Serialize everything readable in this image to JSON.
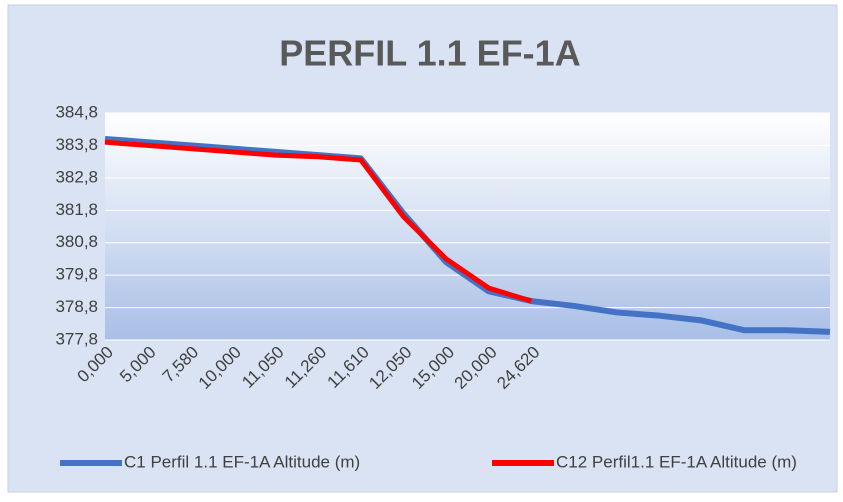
{
  "chart_data": {
    "type": "line",
    "title": "PERFIL 1.1 EF-1A",
    "categories": [
      "0,000",
      "5,000",
      "7,580",
      "10,000",
      "11,050",
      "11,260",
      "11,610",
      "12,050",
      "15,000",
      "20,000",
      "24,620",
      null,
      null,
      null,
      null,
      null,
      null,
      null
    ],
    "series": [
      {
        "name": "C1 Perfil 1.1 EF-1A Altitude (m)",
        "color": "#4472c4",
        "values": [
          384.0,
          383.9,
          383.8,
          383.7,
          383.6,
          383.5,
          383.4,
          381.7,
          380.2,
          379.3,
          379.0,
          378.85,
          378.65,
          378.55,
          378.4,
          378.1,
          378.1,
          378.05
        ]
      },
      {
        "name": "C12 Perfil1.1 EF-1A Altitude (m)",
        "color": "#ff0000",
        "values": [
          383.9,
          383.8,
          383.7,
          383.6,
          383.5,
          383.45,
          383.35,
          381.6,
          380.3,
          379.4,
          379.0,
          null,
          null,
          null,
          null,
          null,
          null,
          null
        ]
      }
    ],
    "ylim": [
      377.8,
      384.8
    ],
    "yticks": [
      {
        "value": 377.8,
        "label": "377,8"
      },
      {
        "value": 378.8,
        "label": "378,8"
      },
      {
        "value": 379.8,
        "label": "379,8"
      },
      {
        "value": 380.8,
        "label": "380,8"
      },
      {
        "value": 381.8,
        "label": "381,8"
      },
      {
        "value": 382.8,
        "label": "382,8"
      },
      {
        "value": 383.8,
        "label": "383,8"
      },
      {
        "value": 384.8,
        "label": "384,8"
      }
    ],
    "grid": true,
    "legend": "bottom"
  }
}
